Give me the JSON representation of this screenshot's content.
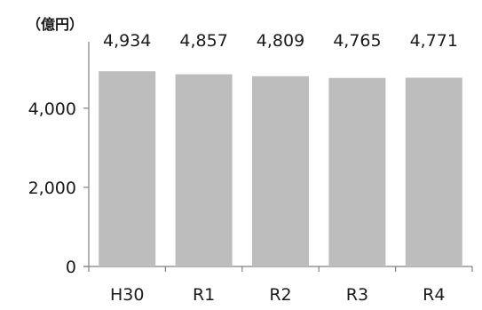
{
  "chart_data": {
    "type": "bar",
    "unit_label": "（億円）",
    "categories": [
      "H30",
      "R1",
      "R2",
      "R3",
      "R4"
    ],
    "values": [
      4934,
      4857,
      4809,
      4765,
      4771
    ],
    "value_labels": [
      "4,934",
      "4,857",
      "4,809",
      "4,765",
      "4,771"
    ],
    "y_ticks": [
      0,
      2000,
      4000
    ],
    "y_tick_labels": [
      "0",
      "2,000",
      "4,000"
    ],
    "ylim": [
      0,
      5500
    ],
    "bar_color": "#bdbdbd",
    "axis_color": "#808080",
    "grid": false,
    "legend": "none"
  }
}
